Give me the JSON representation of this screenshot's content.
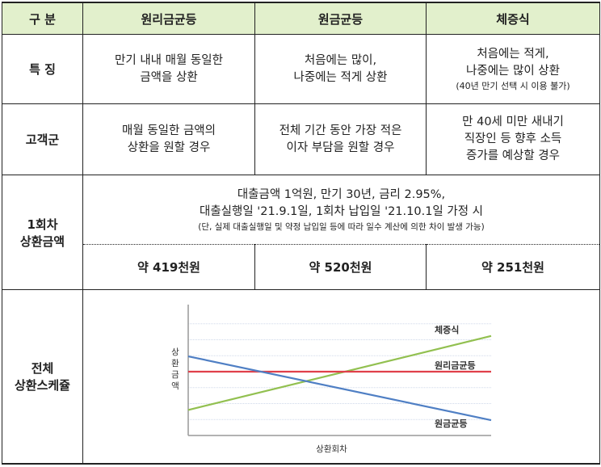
{
  "table": {
    "headers": [
      "구 분",
      "원리금균등",
      "원금균등",
      "체증식"
    ],
    "rows": {
      "feature": {
        "label": "특 징",
        "c1": [
          "만기 내내 매월 동일한",
          "금액을 상환"
        ],
        "c2": [
          "처음에는 많이,",
          "나중에는 적게 상환"
        ],
        "c3": [
          "처음에는 적게,",
          "나중에는 많이 상환"
        ],
        "c3_note": "(40년 만기 선택 시 이용 불가)"
      },
      "customer": {
        "label": "고객군",
        "c1": [
          "매월 동일한 금액의",
          "상환을 원할 경우"
        ],
        "c2": [
          "전체 기간 동안 가장 적은",
          "이자 부담을 원할 경우"
        ],
        "c3": [
          "만 40세 미만 새내기",
          "직장인 등 향후 소득",
          "증가를 예상할 경우"
        ]
      },
      "payment": {
        "label": [
          "1회차",
          "상환금액"
        ],
        "condition": [
          "대출금액 1억원, 만기 30년, 금리 2.95%,",
          "대출실행일 '21.9.1일, 1회차 납입일 '21.10.1일 가정 시"
        ],
        "condition_note": "(단, 실제 대출실행일 및 약정 납입일 등에 따라 일수 계산에 의한 차이 발생 가능)",
        "amounts": [
          "약 419천원",
          "약 520천원",
          "약 251천원"
        ]
      },
      "schedule": {
        "label": [
          "전체",
          "상환스케쥴"
        ]
      }
    }
  },
  "chart_data": {
    "type": "line",
    "xlabel": "상환회차",
    "ylabel": "상환금액",
    "x": [
      0,
      1
    ],
    "series": [
      {
        "name": "체증식",
        "values": [
          0.2,
          0.78
        ],
        "color": "#92c050"
      },
      {
        "name": "원리금균등",
        "values": [
          0.5,
          0.5
        ],
        "color": "#e0404a"
      },
      {
        "name": "원금균등",
        "values": [
          0.62,
          0.12
        ],
        "color": "#4f7fc4"
      }
    ],
    "ylim": [
      0,
      1
    ],
    "grid": true
  }
}
